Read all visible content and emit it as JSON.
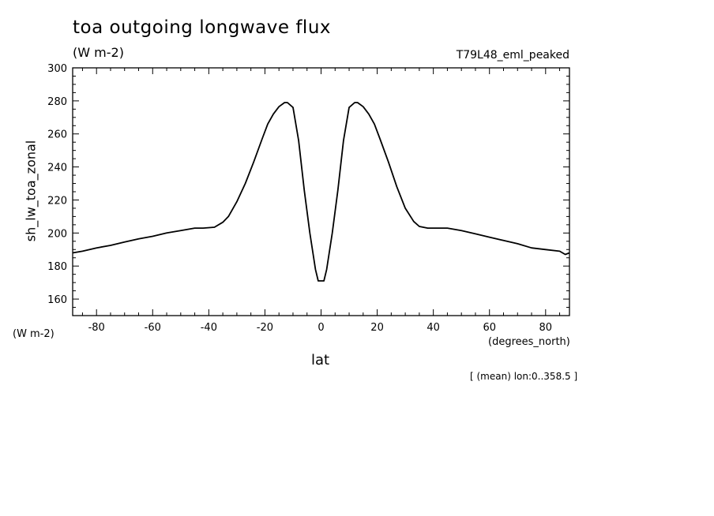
{
  "chart_data": {
    "type": "line",
    "title": "toa outgoing longwave flux",
    "units": "(W m-2)",
    "run_label": "T79L48_eml_peaked",
    "xlabel": "lat",
    "xlabel_units": "(degrees_north)",
    "ylabel": "sh_lw_toa_zonal",
    "ylabel_units": "(W m-2)",
    "note": "[ (mean) lon:0..358.5 ]",
    "xlim": [
      -88.5,
      88.5
    ],
    "ylim": [
      150,
      300
    ],
    "xticks": [
      -80,
      -60,
      -40,
      -20,
      0,
      20,
      40,
      60,
      80
    ],
    "xtick_labels": [
      "-80",
      "-60",
      "-40",
      "-20",
      "0",
      "20",
      "40",
      "60",
      "80"
    ],
    "yticks": [
      160,
      180,
      200,
      220,
      240,
      260,
      280,
      300
    ],
    "ytick_labels": [
      "160",
      "180",
      "200",
      "220",
      "240",
      "260",
      "280",
      "300"
    ],
    "grid": false,
    "series": [
      {
        "x": [
          -88.5,
          -85,
          -80,
          -75,
          -70,
          -65,
          -60,
          -55,
          -50,
          -45,
          -42,
          -38,
          -35,
          -33,
          -30,
          -27,
          -24,
          -21,
          -19,
          -17,
          -15,
          -13,
          -12,
          -10,
          -8,
          -6,
          -4,
          -2,
          -1,
          0,
          1,
          2,
          4,
          6,
          8,
          10,
          12,
          13,
          15,
          17,
          19,
          21,
          24,
          27,
          30,
          33,
          35,
          38,
          42,
          45,
          50,
          55,
          60,
          65,
          70,
          75,
          80,
          85,
          87,
          88.5
        ],
        "y": [
          188,
          189,
          191,
          192.5,
          194.5,
          196.5,
          198,
          200,
          201.5,
          203,
          203,
          203.5,
          206.5,
          210,
          219,
          230,
          243,
          257,
          266,
          272,
          276.5,
          279,
          279,
          276,
          256,
          226,
          200,
          178,
          171,
          171,
          171,
          178,
          200,
          226,
          256,
          276,
          279,
          279,
          276.5,
          272,
          266,
          257,
          243,
          228,
          215,
          207,
          204,
          203,
          203,
          203,
          201.5,
          199.5,
          197.5,
          195.5,
          193.5,
          191,
          190,
          189,
          187,
          188
        ]
      }
    ]
  }
}
